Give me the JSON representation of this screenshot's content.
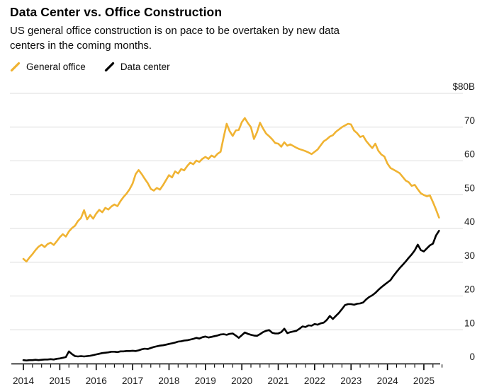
{
  "header": {
    "title": "Data Center vs. Office Construction",
    "subtitle": "US general office construction is on pace to be overtaken by new data centers in the coming months.",
    "subtitle_lines": [
      "US general office construction is on pace to be overtaken by new data",
      "centers in the coming months."
    ]
  },
  "legend": [
    {
      "label": "General office",
      "color": "#F0B332"
    },
    {
      "label": "Data center",
      "color": "#000000"
    }
  ],
  "colors": {
    "accent_yellow": "#F0B332",
    "accent_black": "#000000",
    "grid": "#DCDCDC",
    "axis": "#000000",
    "label_text": "#1a1a1a",
    "background": "#ffffff"
  },
  "chart_data": {
    "type": "line",
    "title": "Data Center vs. Office Construction",
    "x_unit": "month",
    "x_start": "2014-01",
    "x_end": "2025-06",
    "ylim": [
      0,
      80
    ],
    "grid": "horizontal",
    "legend_position": "top-left",
    "y_axis": {
      "side": "right",
      "ticks": [
        {
          "value": 0,
          "label": "0"
        },
        {
          "value": 10,
          "label": "10"
        },
        {
          "value": 20,
          "label": "20"
        },
        {
          "value": 30,
          "label": "30"
        },
        {
          "value": 40,
          "label": "40"
        },
        {
          "value": 50,
          "label": "50"
        },
        {
          "value": 60,
          "label": "60"
        },
        {
          "value": 70,
          "label": "70"
        },
        {
          "value": 80,
          "label": "$80B"
        }
      ]
    },
    "x_axis": {
      "years": [
        "2014",
        "2015",
        "2016",
        "2017",
        "2018",
        "2019",
        "2020",
        "2021",
        "2022",
        "2023",
        "2024",
        "2025"
      ],
      "minor_tick_every_months": 3
    },
    "series": [
      {
        "name": "General office",
        "color": "#F0B332",
        "values": [
          31.0,
          30.2,
          31.4,
          32.4,
          33.6,
          34.6,
          35.2,
          34.5,
          35.4,
          35.8,
          35.1,
          36.2,
          37.4,
          38.3,
          37.6,
          39.1,
          40.1,
          40.8,
          42.2,
          43.1,
          45.4,
          42.7,
          44.0,
          42.9,
          44.4,
          45.5,
          44.8,
          46.1,
          45.6,
          46.5,
          47.1,
          46.6,
          48.1,
          49.3,
          50.3,
          51.6,
          53.3,
          56.1,
          57.3,
          56.1,
          54.7,
          53.4,
          51.7,
          51.2,
          52.0,
          51.5,
          52.8,
          54.3,
          55.8,
          55.1,
          56.9,
          56.3,
          57.6,
          57.2,
          58.5,
          59.5,
          59.0,
          60.1,
          59.7,
          60.6,
          61.2,
          60.6,
          61.6,
          61.1,
          62.1,
          62.7,
          67.0,
          71.0,
          68.8,
          67.4,
          69.0,
          69.2,
          71.5,
          72.7,
          71.2,
          70.0,
          66.5,
          68.5,
          71.3,
          69.6,
          68.1,
          67.3,
          66.4,
          65.3,
          65.1,
          64.2,
          65.5,
          64.5,
          64.9,
          64.4,
          63.9,
          63.5,
          63.2,
          62.9,
          62.5,
          62.0,
          62.7,
          63.4,
          64.6,
          65.8,
          66.4,
          67.2,
          67.6,
          68.6,
          69.3,
          70.0,
          70.5,
          71.0,
          70.8,
          69.0,
          68.2,
          67.1,
          67.4,
          65.9,
          64.8,
          63.8,
          65.1,
          63.0,
          61.9,
          61.3,
          59.2,
          57.9,
          57.4,
          56.9,
          56.4,
          55.3,
          54.2,
          53.7,
          52.6,
          52.9,
          51.6,
          50.4,
          49.9,
          49.5,
          49.8,
          47.8,
          45.6,
          43.2
        ]
      },
      {
        "name": "Data center",
        "color": "#000000",
        "values": [
          1.0,
          0.9,
          1.0,
          1.0,
          1.1,
          1.0,
          1.1,
          1.2,
          1.2,
          1.3,
          1.2,
          1.4,
          1.5,
          1.7,
          1.9,
          3.6,
          2.8,
          2.2,
          2.1,
          2.2,
          2.1,
          2.2,
          2.3,
          2.5,
          2.7,
          2.9,
          3.1,
          3.2,
          3.3,
          3.5,
          3.5,
          3.4,
          3.6,
          3.6,
          3.7,
          3.7,
          3.8,
          3.7,
          3.9,
          4.2,
          4.4,
          4.3,
          4.6,
          4.9,
          5.1,
          5.3,
          5.4,
          5.6,
          5.8,
          6.0,
          6.2,
          6.5,
          6.6,
          6.8,
          6.9,
          7.1,
          7.3,
          7.6,
          7.4,
          7.8,
          8.0,
          7.7,
          7.9,
          8.1,
          8.3,
          8.6,
          8.7,
          8.5,
          8.8,
          8.9,
          8.3,
          7.6,
          8.4,
          9.2,
          8.8,
          8.5,
          8.3,
          8.2,
          8.7,
          9.3,
          9.7,
          9.9,
          9.1,
          8.9,
          8.9,
          9.3,
          10.3,
          9.0,
          9.3,
          9.5,
          9.7,
          10.3,
          11.0,
          10.8,
          11.3,
          11.2,
          11.7,
          11.5,
          11.9,
          12.1,
          12.9,
          14.1,
          13.2,
          14.1,
          15.0,
          16.1,
          17.3,
          17.6,
          17.6,
          17.4,
          17.7,
          17.8,
          18.1,
          19.0,
          19.7,
          20.2,
          20.9,
          21.8,
          22.6,
          23.3,
          24.0,
          24.7,
          26.0,
          27.1,
          28.2,
          29.2,
          30.2,
          31.3,
          32.3,
          33.5,
          35.2,
          33.6,
          33.2,
          34.1,
          35.0,
          35.5,
          37.9,
          39.3
        ]
      }
    ]
  }
}
